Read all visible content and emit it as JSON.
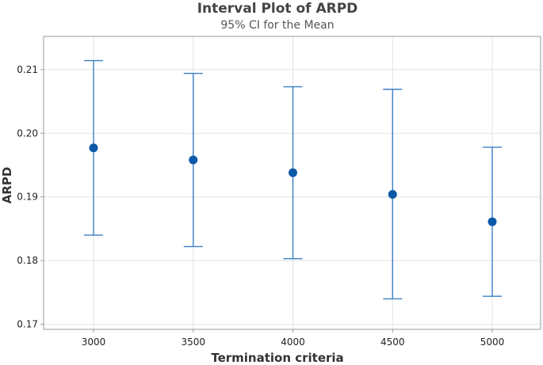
{
  "chart_data": {
    "type": "interval",
    "title": "Interval Plot of ARPD",
    "subtitle": "95% CI for the Mean",
    "xlabel": "Termination criteria",
    "ylabel": "ARPD",
    "categories": [
      "3000",
      "3500",
      "4000",
      "4500",
      "5000"
    ],
    "series": [
      {
        "mean": [
          0.1977,
          0.1958,
          0.1938,
          0.1904,
          0.1861
        ],
        "lower": [
          0.184,
          0.1822,
          0.1803,
          0.174,
          0.1744
        ],
        "upper": [
          0.2114,
          0.2094,
          0.2073,
          0.2069,
          0.1978
        ]
      }
    ],
    "yticks": [
      "0.17",
      "0.18",
      "0.19",
      "0.20",
      "0.21"
    ],
    "ylim": [
      0.1692,
      0.2152
    ],
    "grid": true,
    "colors": {
      "marker": "#0b5aa8",
      "errorbar": "#3a7fc6",
      "grid": "#e3e3e3",
      "frame": "#9a9a9a"
    }
  }
}
